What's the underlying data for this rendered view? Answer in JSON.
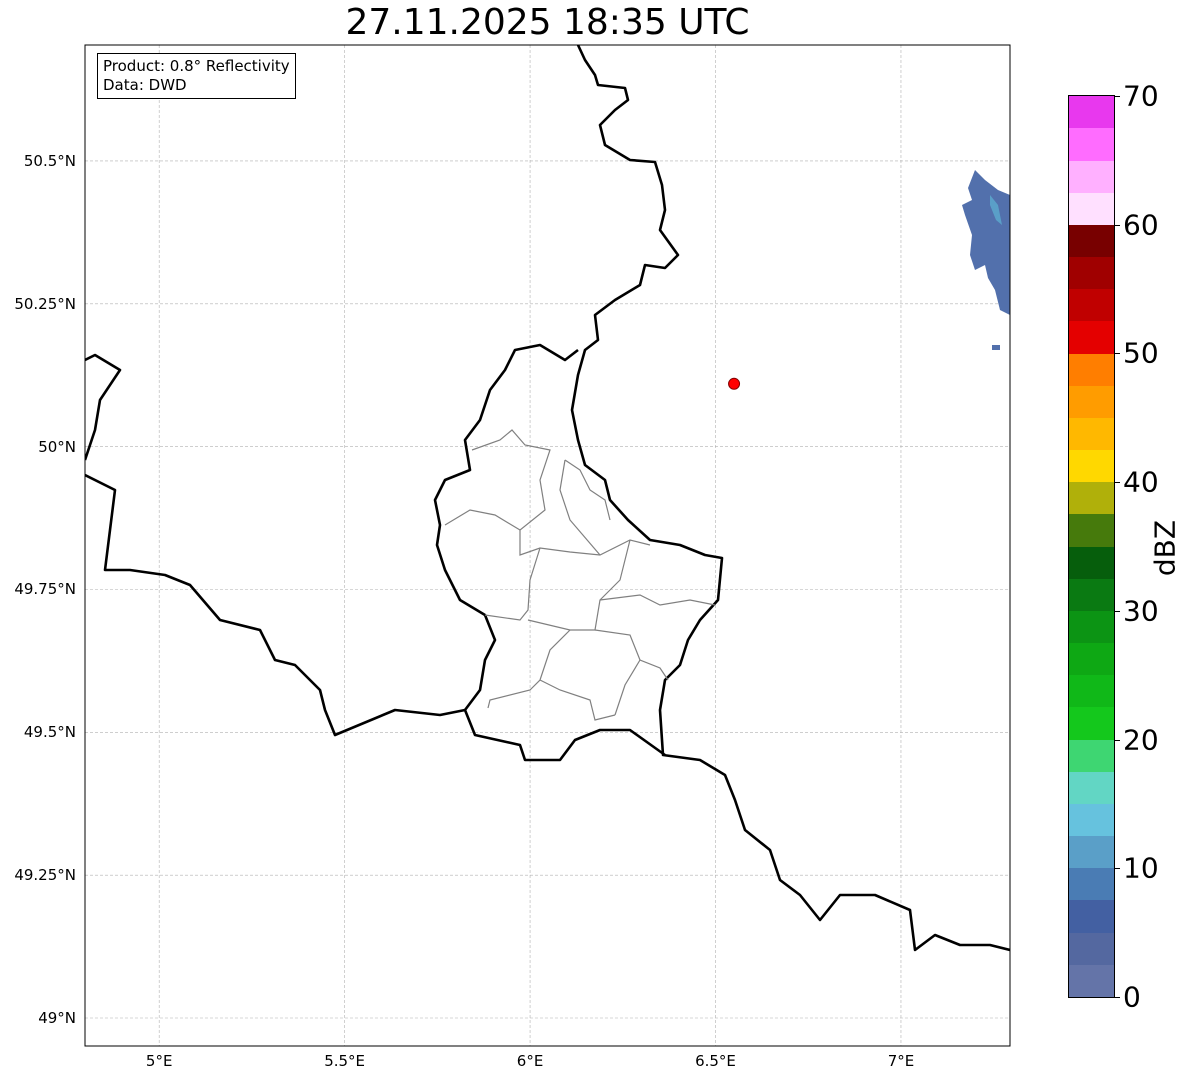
{
  "title": "27.11.2025 18:35 UTC",
  "info": {
    "product": "Product: 0.8° Reflectivity",
    "data": "Data: DWD"
  },
  "axes": {
    "lat_ticks": [
      {
        "v": 50.5,
        "label": "50.5°N"
      },
      {
        "v": 50.25,
        "label": "50.25°N"
      },
      {
        "v": 50.0,
        "label": "50°N"
      },
      {
        "v": 49.75,
        "label": "49.75°N"
      },
      {
        "v": 49.5,
        "label": "49.5°N"
      },
      {
        "v": 49.25,
        "label": "49.25°N"
      },
      {
        "v": 49.0,
        "label": "49°N"
      }
    ],
    "lon_ticks": [
      {
        "v": 5.0,
        "label": "5°E"
      },
      {
        "v": 5.5,
        "label": "5.5°E"
      },
      {
        "v": 6.0,
        "label": "6°E"
      },
      {
        "v": 6.5,
        "label": "6.5°E"
      },
      {
        "v": 7.0,
        "label": "7°E"
      }
    ],
    "lon_range": [
      4.8,
      7.294
    ],
    "lat_range": [
      48.951,
      50.703
    ]
  },
  "marker": {
    "lon": 6.55,
    "lat": 50.11,
    "color": "#ff0000"
  },
  "colorbar": {
    "label": "dBZ",
    "range": [
      0,
      70
    ],
    "ticks": [
      {
        "v": 0,
        "label": "0"
      },
      {
        "v": 10,
        "label": "10"
      },
      {
        "v": 20,
        "label": "20"
      },
      {
        "v": 30,
        "label": "30"
      },
      {
        "v": 40,
        "label": "40"
      },
      {
        "v": 50,
        "label": "50"
      },
      {
        "v": 60,
        "label": "60"
      },
      {
        "v": 70,
        "label": "70"
      }
    ],
    "colors": [
      "#6474a8",
      "#5468a0",
      "#4360a2",
      "#4a7cb4",
      "#5a9fc8",
      "#66c2de",
      "#62d6c4",
      "#3ed672",
      "#14c81c",
      "#10b818",
      "#0ea814",
      "#0c9414",
      "#0a7a12",
      "#065e0c",
      "#467a0c",
      "#b0b00a",
      "#ffd800",
      "#ffb800",
      "#ff9c00",
      "#ff7e00",
      "#e40000",
      "#c00000",
      "#a00000",
      "#780000",
      "#ffe0ff",
      "#ffb0ff",
      "#ff6cff",
      "#e838ee"
    ]
  }
}
